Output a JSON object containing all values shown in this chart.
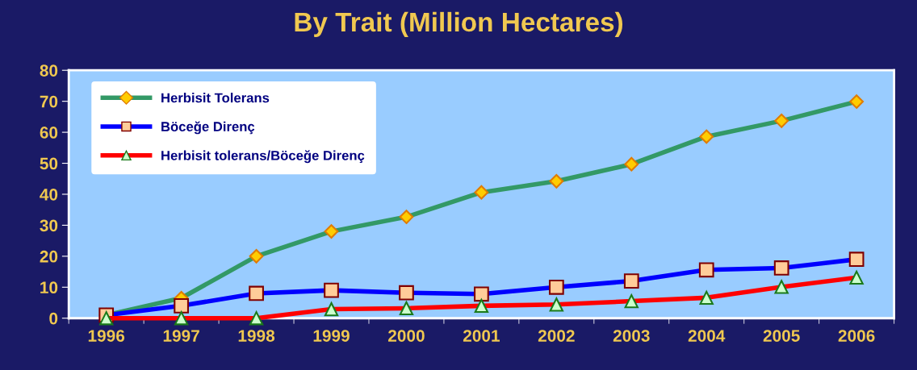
{
  "chart_data": {
    "type": "line",
    "title": "By Trait (Million Hectares)",
    "categories": [
      "1996",
      "1997",
      "1998",
      "1999",
      "2000",
      "2001",
      "2002",
      "2003",
      "2004",
      "2005",
      "2006"
    ],
    "series": [
      {
        "name": "Herbisit Tolerans",
        "color": "#339966",
        "marker": "diamond",
        "values": [
          1,
          6.5,
          20,
          28,
          32.7,
          40.6,
          44.2,
          49.7,
          58.6,
          63.7,
          69.9
        ]
      },
      {
        "name": "Böceğe Direnç",
        "color": "#0000ff",
        "marker": "square",
        "values": [
          1,
          4,
          8,
          9,
          8.2,
          7.8,
          10,
          12,
          15.6,
          16.2,
          19
        ]
      },
      {
        "name": "Herbisit tolerans/Böceğe Direnç",
        "color": "#ff0000",
        "marker": "triangle",
        "values": [
          0,
          0,
          0,
          2.9,
          3.2,
          4,
          4.4,
          5.5,
          6.6,
          10.1,
          13.1
        ]
      }
    ],
    "ylim": [
      0,
      80
    ],
    "yticks": [
      0,
      10,
      20,
      30,
      40,
      50,
      60,
      70,
      80
    ],
    "grid": false,
    "legend": "top left",
    "line_style": "solid"
  }
}
